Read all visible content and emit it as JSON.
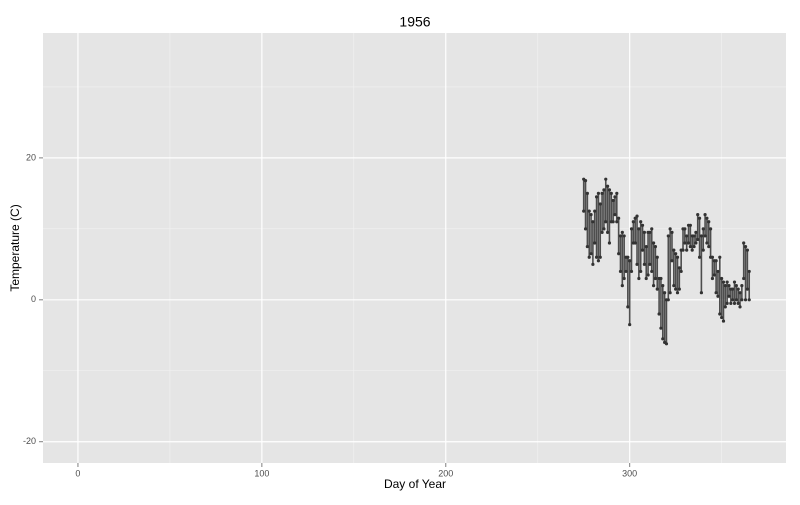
{
  "chart_data": {
    "type": "linerange",
    "title": "1956",
    "x_label": "Day of Year",
    "y_label": "Temperature (C)",
    "xlim": [
      -19,
      385
    ],
    "xticks": [
      0,
      100,
      200,
      300
    ],
    "ylim": [
      -23,
      37.6
    ],
    "yticks": [
      -20,
      0,
      20
    ],
    "grid": true,
    "color": "#333333",
    "x": [
      275,
      276,
      277,
      278,
      279,
      280,
      281,
      282,
      283,
      284,
      285,
      286,
      287,
      288,
      289,
      290,
      291,
      292,
      293,
      294,
      295,
      296,
      297,
      298,
      299,
      300,
      301,
      302,
      303,
      304,
      305,
      306,
      307,
      308,
      309,
      310,
      311,
      312,
      313,
      314,
      315,
      316,
      317,
      318,
      319,
      320,
      321,
      322,
      323,
      324,
      325,
      326,
      327,
      328,
      329,
      330,
      331,
      332,
      333,
      334,
      335,
      336,
      337,
      338,
      339,
      340,
      341,
      342,
      343,
      344,
      345,
      346,
      347,
      348,
      349,
      350,
      351,
      352,
      353,
      354,
      355,
      356,
      357,
      358,
      359,
      360,
      361,
      362,
      363,
      364,
      365
    ],
    "high": [
      17,
      16.8,
      15,
      12.5,
      12,
      11,
      12.5,
      14.5,
      15,
      13.5,
      15,
      15.5,
      17,
      16,
      15.5,
      15,
      14,
      14.5,
      15,
      11.5,
      9,
      9.5,
      9,
      6,
      6,
      5.5,
      10,
      11,
      11.5,
      11.8,
      10,
      11,
      10.5,
      9.5,
      7.5,
      9.5,
      9.5,
      10,
      8,
      7.5,
      6,
      3,
      3,
      2,
      1,
      0,
      9,
      10,
      9.5,
      7,
      6.5,
      6,
      4.5,
      7,
      10,
      10,
      9,
      10.5,
      10.5,
      9,
      9,
      9.5,
      12,
      11.5,
      9,
      10,
      12,
      11.5,
      11,
      10,
      6,
      5.5,
      5.5,
      4,
      6,
      3,
      2.5,
      2,
      2.5,
      2,
      1.5,
      1.5,
      2.5,
      2,
      1.5,
      1,
      2,
      8,
      7.5,
      7,
      4
    ],
    "low": [
      12.5,
      10,
      7.5,
      6,
      6.5,
      5,
      8,
      6,
      5.5,
      6,
      9.5,
      10,
      11,
      9.5,
      8,
      11,
      11,
      12,
      11,
      6.5,
      4,
      2,
      3,
      4,
      -1,
      -3.5,
      4,
      8,
      8,
      5,
      3,
      4,
      7,
      5,
      3,
      3.5,
      5,
      4,
      2,
      3,
      1.5,
      -2,
      -4,
      -5.5,
      -6,
      -6.2,
      0,
      1,
      5.5,
      2,
      1.5,
      1,
      1.5,
      4,
      7,
      8,
      7,
      8,
      7.5,
      7,
      7.5,
      8,
      8.5,
      6,
      1,
      7,
      9,
      8,
      7.5,
      6,
      3,
      3.5,
      1,
      0.5,
      -2,
      -2.5,
      -3,
      -1,
      -0.5,
      0.5,
      -0.5,
      0,
      -0.5,
      0,
      -0.5,
      -1,
      0,
      3,
      0,
      1.5,
      0
    ]
  }
}
